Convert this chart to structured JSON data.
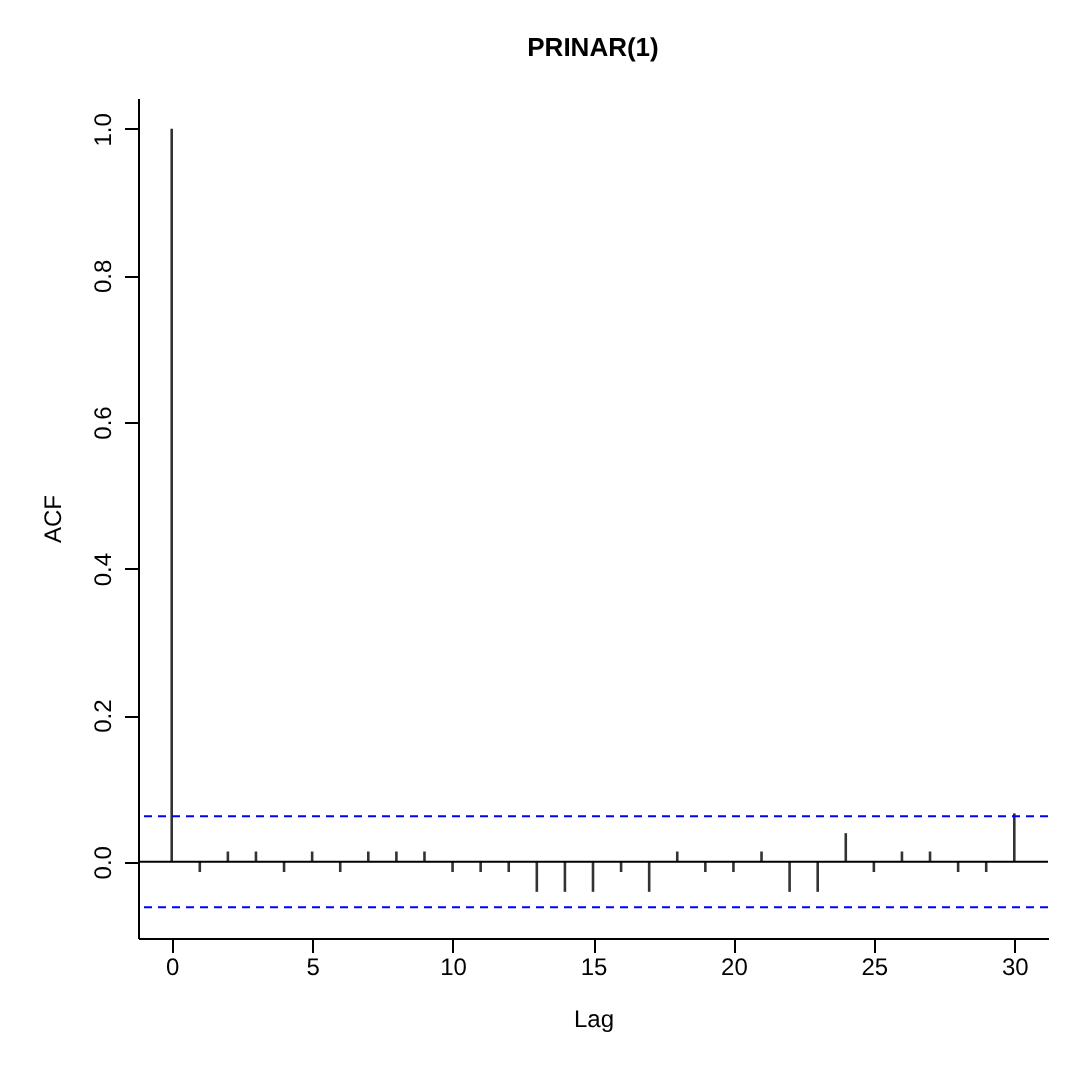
{
  "chart_data": {
    "type": "bar",
    "title": "PRINAR(1)",
    "xlabel": "Lag",
    "ylabel": "ACF",
    "x": [
      0,
      1,
      2,
      3,
      4,
      5,
      6,
      7,
      8,
      9,
      10,
      11,
      12,
      13,
      14,
      15,
      16,
      17,
      18,
      19,
      20,
      21,
      22,
      23,
      24,
      25,
      26,
      27,
      28,
      29,
      30
    ],
    "values": [
      1.0,
      -0.014,
      0.014,
      0.014,
      -0.014,
      0.014,
      -0.014,
      0.014,
      0.014,
      0.014,
      -0.014,
      -0.014,
      -0.014,
      -0.041,
      -0.041,
      -0.041,
      -0.014,
      -0.041,
      0.014,
      -0.014,
      -0.014,
      0.014,
      -0.041,
      -0.041,
      0.039,
      -0.014,
      0.014,
      0.014,
      -0.014,
      -0.014,
      0.066
    ],
    "color": "#333333",
    "xlim": [
      -1.2,
      31.2
    ],
    "xticks": [
      0,
      5,
      10,
      15,
      20,
      25,
      30
    ],
    "ylim": [
      -0.104,
      1.042
    ],
    "yticks": [
      {
        "value": 0,
        "label": "0.0"
      },
      0.2,
      0.4,
      0.6,
      0.8,
      {
        "value": 1,
        "label": "1.0"
      }
    ],
    "grid": false,
    "ref_lines": [
      {
        "axis": "y",
        "value": 0,
        "color": "#000000",
        "line_style": "solid"
      },
      {
        "axis": "y",
        "value": 0.062,
        "color": "#0000ff",
        "line_style": "dashed"
      },
      {
        "axis": "y",
        "value": -0.062,
        "color": "#0000ff",
        "line_style": "dashed"
      }
    ]
  }
}
